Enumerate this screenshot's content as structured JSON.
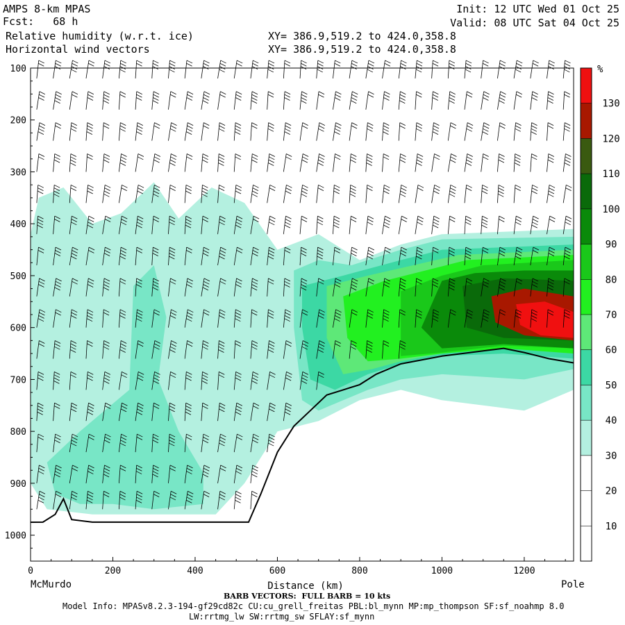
{
  "header": {
    "line1_left": "AMPS 8-km MPAS",
    "line2_left": "Fcst:   68 h",
    "line3_left": "Relative humidity (w.r.t. ice)",
    "line4_left": "Horizontal wind vectors",
    "line3_mid": "XY= 386.9,519.2 to 424.0,358.8",
    "line4_mid": "XY= 386.9,519.2 to 424.0,358.8",
    "line1_right": "Init: 12 UTC Wed 01 Oct 25",
    "line2_right": "Valid: 08 UTC Sat 04 Oct 25"
  },
  "footer": {
    "left_endpoint": "McMurdo",
    "right_endpoint": "Pole",
    "barb_note": "BARB VECTORS:  FULL BARB = 10 kts",
    "model_info": "Model Info: MPASv8.2.3-194-gf29cd82c CU:cu_grell_freitas PBL:bl_mynn MP:mp_thompson SF:sf_noahmp 8.0",
    "model_info2": "LW:rrtmg_lw SW:rrtmg_sw SFLAY:sf_mynn"
  },
  "chart_data": {
    "type": "heatmap",
    "title": "Relative humidity (w.r.t. ice)",
    "xlabel": "Distance (km)",
    "ylabel": "",
    "xlim": [
      0,
      1320
    ],
    "ylim": [
      1050,
      100
    ],
    "x_ticks": [
      0,
      200,
      400,
      600,
      800,
      1000,
      1200
    ],
    "y_ticks": [
      100,
      200,
      300,
      400,
      500,
      600,
      700,
      800,
      900,
      1000
    ],
    "colorbar": {
      "unit": "%",
      "ticks": [
        10,
        20,
        30,
        40,
        50,
        60,
        70,
        80,
        90,
        100,
        110,
        120,
        130
      ],
      "bins": [
        {
          "lo": 0,
          "hi": 10,
          "color": "#ffffff"
        },
        {
          "lo": 10,
          "hi": 20,
          "color": "#ffffff"
        },
        {
          "lo": 20,
          "hi": 30,
          "color": "#ffffff"
        },
        {
          "lo": 30,
          "hi": 40,
          "color": "#b4f0e0"
        },
        {
          "lo": 40,
          "hi": 50,
          "color": "#78e6c6"
        },
        {
          "lo": 50,
          "hi": 60,
          "color": "#3cd8a4"
        },
        {
          "lo": 60,
          "hi": 70,
          "color": "#5ee878"
        },
        {
          "lo": 70,
          "hi": 80,
          "color": "#22f020"
        },
        {
          "lo": 80,
          "hi": 90,
          "color": "#1ac81a"
        },
        {
          "lo": 90,
          "hi": 100,
          "color": "#0a8a0a"
        },
        {
          "lo": 100,
          "hi": 110,
          "color": "#0a6a0a"
        },
        {
          "lo": 110,
          "hi": 120,
          "color": "#3a5a10"
        },
        {
          "lo": 120,
          "hi": 130,
          "color": "#a81800"
        },
        {
          "lo": 130,
          "hi": 140,
          "color": "#f01010"
        }
      ]
    },
    "terrain": [
      [
        0,
        975
      ],
      [
        30,
        975
      ],
      [
        60,
        960
      ],
      [
        80,
        930
      ],
      [
        100,
        970
      ],
      [
        150,
        975
      ],
      [
        300,
        975
      ],
      [
        530,
        975
      ],
      [
        560,
        920
      ],
      [
        600,
        840
      ],
      [
        640,
        790
      ],
      [
        680,
        760
      ],
      [
        720,
        730
      ],
      [
        760,
        720
      ],
      [
        800,
        710
      ],
      [
        840,
        690
      ],
      [
        900,
        670
      ],
      [
        1000,
        655
      ],
      [
        1100,
        645
      ],
      [
        1150,
        640
      ],
      [
        1200,
        648
      ],
      [
        1260,
        660
      ],
      [
        1320,
        668
      ]
    ],
    "humidity_regions": [
      {
        "bin": "30-40",
        "points": [
          [
            20,
            350
          ],
          [
            80,
            330
          ],
          [
            150,
            400
          ],
          [
            220,
            380
          ],
          [
            300,
            320
          ],
          [
            360,
            390
          ],
          [
            440,
            330
          ],
          [
            520,
            360
          ],
          [
            600,
            450
          ],
          [
            700,
            420
          ],
          [
            800,
            470
          ],
          [
            900,
            440
          ],
          [
            1000,
            420
          ],
          [
            1320,
            410
          ],
          [
            1320,
            720
          ],
          [
            1200,
            760
          ],
          [
            1000,
            740
          ],
          [
            900,
            720
          ],
          [
            800,
            740
          ],
          [
            700,
            780
          ],
          [
            600,
            800
          ],
          [
            520,
            900
          ],
          [
            450,
            960
          ],
          [
            300,
            960
          ],
          [
            150,
            960
          ],
          [
            40,
            950
          ],
          [
            0,
            900
          ],
          [
            0,
            420
          ]
        ]
      },
      {
        "bin": "40-50",
        "points": [
          [
            250,
            520
          ],
          [
            300,
            480
          ],
          [
            330,
            580
          ],
          [
            310,
            700
          ],
          [
            360,
            800
          ],
          [
            420,
            880
          ],
          [
            420,
            940
          ],
          [
            300,
            950
          ],
          [
            200,
            940
          ],
          [
            120,
            940
          ],
          [
            60,
            920
          ],
          [
            40,
            860
          ],
          [
            120,
            800
          ],
          [
            180,
            760
          ],
          [
            240,
            720
          ]
        ]
      },
      {
        "bin": "40-50",
        "points": [
          [
            640,
            490
          ],
          [
            700,
            470
          ],
          [
            780,
            480
          ],
          [
            900,
            450
          ],
          [
            1000,
            430
          ],
          [
            1320,
            425
          ],
          [
            1320,
            680
          ],
          [
            1200,
            700
          ],
          [
            1000,
            690
          ],
          [
            900,
            700
          ],
          [
            820,
            720
          ],
          [
            760,
            740
          ],
          [
            700,
            760
          ],
          [
            660,
            740
          ],
          [
            640,
            600
          ]
        ]
      },
      {
        "bin": "50-60",
        "points": [
          [
            660,
            520
          ],
          [
            760,
            500
          ],
          [
            900,
            470
          ],
          [
            1000,
            450
          ],
          [
            1320,
            440
          ],
          [
            1320,
            660
          ],
          [
            1150,
            650
          ],
          [
            1000,
            655
          ],
          [
            900,
            670
          ],
          [
            820,
            690
          ],
          [
            740,
            720
          ],
          [
            680,
            700
          ],
          [
            660,
            600
          ]
        ]
      },
      {
        "bin": "60-70",
        "points": [
          [
            720,
            520
          ],
          [
            820,
            500
          ],
          [
            930,
            480
          ],
          [
            1040,
            460
          ],
          [
            1320,
            450
          ],
          [
            1320,
            650
          ],
          [
            1150,
            640
          ],
          [
            1000,
            650
          ],
          [
            900,
            665
          ],
          [
            830,
            680
          ],
          [
            760,
            690
          ],
          [
            720,
            620
          ]
        ]
      },
      {
        "bin": "70-80",
        "points": [
          [
            760,
            540
          ],
          [
            860,
            510
          ],
          [
            960,
            490
          ],
          [
            1060,
            470
          ],
          [
            1320,
            460
          ],
          [
            1320,
            650
          ],
          [
            1150,
            640
          ],
          [
            1000,
            650
          ],
          [
            900,
            660
          ],
          [
            820,
            665
          ],
          [
            770,
            620
          ]
        ]
      },
      {
        "bin": "80-90",
        "points": [
          [
            900,
            530
          ],
          [
            1000,
            500
          ],
          [
            1100,
            480
          ],
          [
            1320,
            470
          ],
          [
            1320,
            640
          ],
          [
            1150,
            635
          ],
          [
            1000,
            648
          ],
          [
            900,
            655
          ]
        ]
      },
      {
        "bin": "90-100",
        "points": [
          [
            1000,
            510
          ],
          [
            1080,
            495
          ],
          [
            1200,
            490
          ],
          [
            1320,
            490
          ],
          [
            1320,
            640
          ],
          [
            1150,
            632
          ],
          [
            1000,
            640
          ],
          [
            950,
            600
          ]
        ]
      },
      {
        "bin": "100-110",
        "points": [
          [
            1050,
            520
          ],
          [
            1150,
            505
          ],
          [
            1320,
            510
          ],
          [
            1320,
            625
          ],
          [
            1150,
            620
          ],
          [
            1060,
            600
          ]
        ]
      },
      {
        "bin": "120-130",
        "points": [
          [
            1120,
            540
          ],
          [
            1200,
            525
          ],
          [
            1320,
            540
          ],
          [
            1320,
            625
          ],
          [
            1200,
            615
          ],
          [
            1130,
            590
          ]
        ]
      },
      {
        "bin": "130-140",
        "points": [
          [
            1180,
            555
          ],
          [
            1250,
            550
          ],
          [
            1320,
            570
          ],
          [
            1320,
            620
          ],
          [
            1240,
            615
          ],
          [
            1190,
            595
          ]
        ]
      }
    ],
    "wind_barb_columns_x": [
      15,
      55,
      95,
      135,
      175,
      215,
      255,
      295,
      335,
      375,
      415,
      455,
      495,
      535,
      575,
      615,
      655,
      695,
      735,
      775,
      815,
      855,
      895,
      935,
      975,
      1015,
      1055,
      1095,
      1135,
      1175,
      1215,
      1255,
      1295
    ],
    "wind_barb_levels": [
      120,
      180,
      240,
      300,
      360,
      420,
      480,
      540,
      600,
      660,
      720,
      780,
      840,
      900,
      950
    ]
  }
}
